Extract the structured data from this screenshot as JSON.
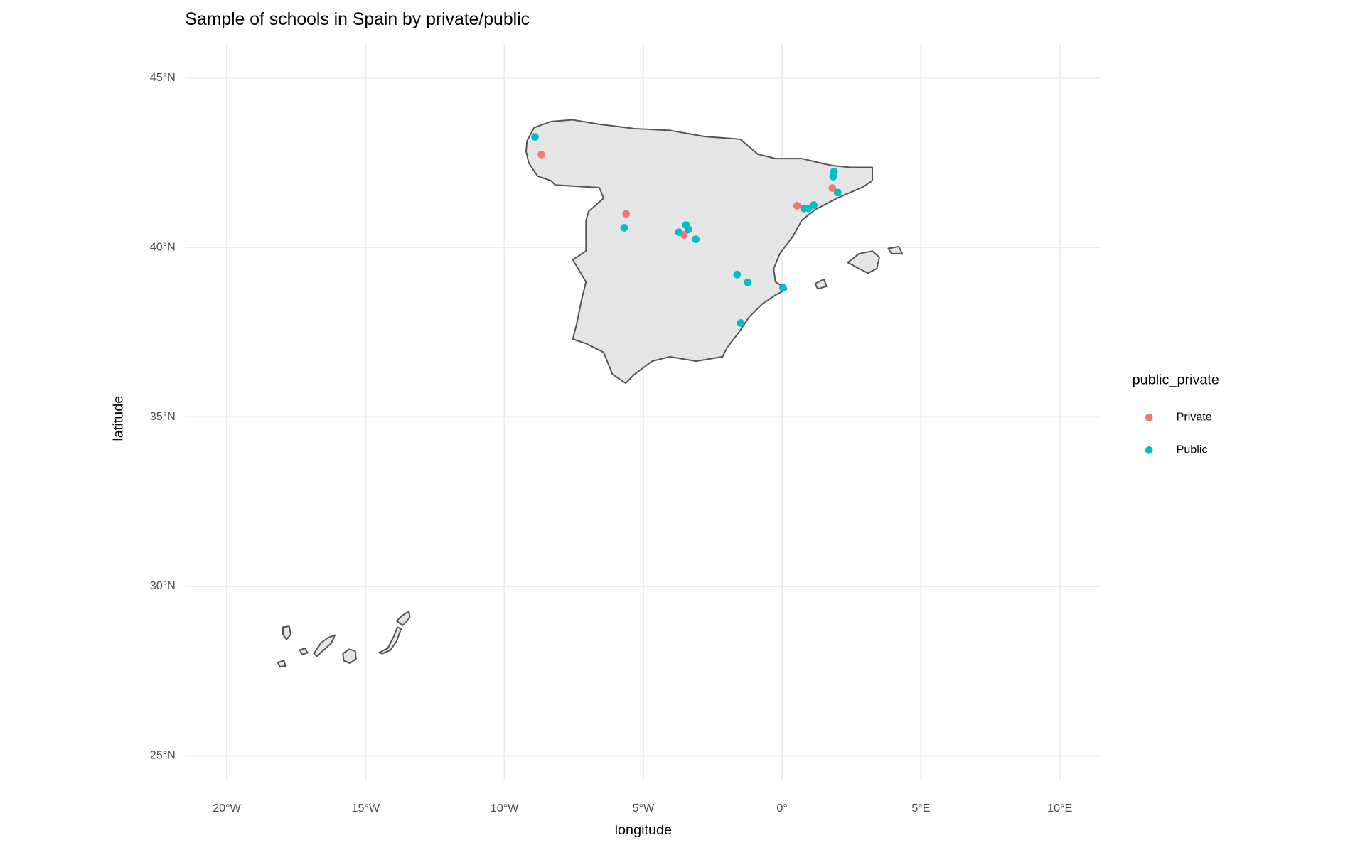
{
  "chart_data": {
    "type": "scatter",
    "title": "Sample of schools in Spain by private/public",
    "x_label": "longitude",
    "y_label": "latitude",
    "legend_title": "public_private",
    "legend_position": "right",
    "grid": true,
    "xlim": [
      -21.5,
      11.5
    ],
    "ylim": [
      24.3,
      46.0
    ],
    "xticks": [
      {
        "value": -20,
        "label": "20°W"
      },
      {
        "value": -15,
        "label": "15°W"
      },
      {
        "value": -10,
        "label": "10°W"
      },
      {
        "value": -5,
        "label": "5°W"
      },
      {
        "value": 0,
        "label": "0°"
      },
      {
        "value": 5,
        "label": "5°E"
      },
      {
        "value": 10,
        "label": "10°E"
      }
    ],
    "yticks": [
      {
        "value": 25,
        "label": "25°N"
      },
      {
        "value": 30,
        "label": "30°N"
      },
      {
        "value": 35,
        "label": "35°N"
      },
      {
        "value": 40,
        "label": "40°N"
      },
      {
        "value": 45,
        "label": "45°N"
      }
    ],
    "series": [
      {
        "name": "Private",
        "color": "#F8766D",
        "x": [
          -8.67,
          -5.62,
          -3.53,
          0.54,
          1.81
        ],
        "values": [
          42.74,
          40.99,
          40.37,
          41.23,
          41.75
        ]
      },
      {
        "name": "Public",
        "color": "#00BFC4",
        "x": [
          -8.9,
          -5.69,
          -3.72,
          -3.46,
          -3.37,
          -3.11,
          -1.62,
          -1.24,
          0.03,
          -1.49,
          0.79,
          0.95,
          1.14,
          1.87,
          1.84,
          2.0
        ],
        "values": [
          43.26,
          40.58,
          40.45,
          40.66,
          40.53,
          40.24,
          39.2,
          38.97,
          38.81,
          37.77,
          41.15,
          41.15,
          41.25,
          42.24,
          42.09,
          41.62
        ]
      }
    ]
  }
}
